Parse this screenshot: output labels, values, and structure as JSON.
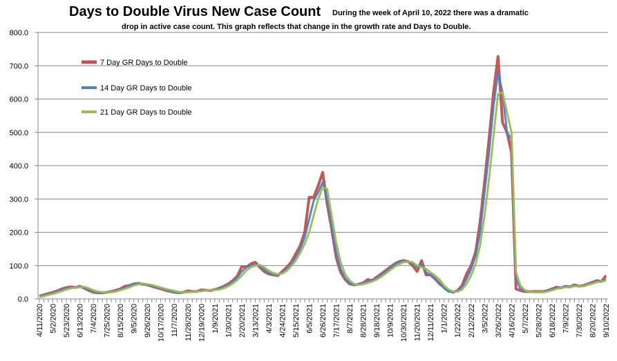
{
  "chart_data": {
    "type": "line",
    "title": "Days to Double Virus New Case Count",
    "subtitle_line1": "During the week of April 10, 2022 there was a dramatic",
    "subtitle_line2": "drop in active case count.  This graph reflects that change in the growth rate and Days to Double.",
    "xlabel": "",
    "ylabel": "",
    "ylim": [
      0,
      800
    ],
    "yticks": [
      "0.0",
      "100.0",
      "200.0",
      "300.0",
      "400.0",
      "500.0",
      "600.0",
      "700.0",
      "800.0"
    ],
    "grid": "horizontal",
    "legend_position": "upper-left",
    "x_interval": "weekly",
    "xtick_labels": [
      "4/11/2020",
      "5/2/2020",
      "5/23/2020",
      "6/13/2020",
      "7/4/2020",
      "7/25/2020",
      "8/15/2020",
      "9/5/2020",
      "9/26/2020",
      "10/17/2020",
      "11/7/2020",
      "11/28/2020",
      "12/19/2020",
      "1/9/2021",
      "1/30/2021",
      "2/20/2021",
      "3/13/2021",
      "4/3/2021",
      "4/24/2021",
      "5/15/2021",
      "6/5/2021",
      "6/26/2021",
      "7/17/2021",
      "8/7/2021",
      "8/28/2021",
      "9/18/2021",
      "10/9/2021",
      "10/30/2021",
      "11/20/2021",
      "12/11/2021",
      "1/1/2022",
      "1/22/2022",
      "2/12/2022",
      "3/5/2022",
      "3/26/2022",
      "4/16/2022",
      "5/7/2022",
      "5/28/2022",
      "6/18/2022",
      "7/9/2022",
      "7/30/2022",
      "8/20/2022",
      "9/10/2022"
    ],
    "series": [
      {
        "name": "7 Day GR Days to Double",
        "color": "#C0504D",
        "values": [
          8,
          12,
          16,
          20,
          24,
          30,
          34,
          36,
          34,
          38,
          32,
          25,
          20,
          18,
          18,
          20,
          22,
          26,
          30,
          38,
          40,
          45,
          46,
          44,
          42,
          38,
          34,
          30,
          26,
          23,
          20,
          18,
          20,
          24,
          22,
          22,
          27,
          26,
          25,
          28,
          32,
          38,
          45,
          55,
          68,
          97,
          95,
          105,
          110,
          95,
          82,
          75,
          72,
          70,
          82,
          95,
          110,
          135,
          160,
          200,
          305,
          305,
          340,
          380,
          285,
          210,
          125,
          80,
          58,
          45,
          42,
          44,
          48,
          58,
          55,
          65,
          75,
          85,
          95,
          105,
          112,
          115,
          112,
          100,
          82,
          115,
          72,
          72,
          60,
          45,
          35,
          25,
          20,
          25,
          40,
          75,
          100,
          140,
          230,
          350,
          480,
          620,
          728,
          530,
          500,
          440,
          30,
          25,
          22,
          22,
          22,
          22,
          22,
          25,
          30,
          35,
          33,
          38,
          36,
          42,
          38,
          40,
          45,
          50,
          55,
          52,
          70
        ]
      },
      {
        "name": "14 Day GR Days to Double",
        "color": "#4F81BD",
        "values": [
          6,
          10,
          14,
          18,
          22,
          27,
          32,
          34,
          35,
          36,
          34,
          28,
          22,
          20,
          19,
          20,
          21,
          24,
          28,
          34,
          40,
          44,
          48,
          45,
          42,
          40,
          36,
          32,
          28,
          24,
          21,
          19,
          19,
          21,
          22,
          23,
          25,
          26,
          26,
          27,
          30,
          36,
          42,
          52,
          64,
          82,
          95,
          100,
          104,
          100,
          88,
          78,
          74,
          72,
          78,
          90,
          105,
          125,
          150,
          185,
          240,
          295,
          320,
          350,
          300,
          220,
          140,
          90,
          62,
          48,
          43,
          43,
          46,
          52,
          56,
          62,
          72,
          82,
          92,
          102,
          110,
          114,
          112,
          105,
          95,
          105,
          80,
          72,
          62,
          48,
          32,
          22,
          20,
          24,
          35,
          60,
          90,
          130,
          200,
          320,
          440,
          580,
          680,
          620,
          500,
          480,
          60,
          30,
          24,
          22,
          21,
          21,
          22,
          24,
          28,
          32,
          34,
          36,
          36,
          40,
          38,
          40,
          44,
          48,
          52,
          52,
          60
        ]
      },
      {
        "name": "21 Day GR Days to Double",
        "color": "#9BBB59",
        "values": [
          5,
          8,
          12,
          15,
          19,
          23,
          28,
          32,
          34,
          35,
          36,
          32,
          26,
          22,
          20,
          20,
          20,
          22,
          26,
          30,
          35,
          40,
          44,
          46,
          44,
          42,
          38,
          34,
          30,
          27,
          24,
          21,
          20,
          20,
          21,
          22,
          23,
          25,
          26,
          27,
          28,
          32,
          38,
          46,
          56,
          70,
          85,
          95,
          100,
          102,
          95,
          85,
          78,
          74,
          76,
          84,
          98,
          115,
          138,
          165,
          200,
          250,
          300,
          335,
          330,
          250,
          170,
          110,
          75,
          55,
          45,
          42,
          44,
          48,
          52,
          58,
          66,
          76,
          86,
          96,
          104,
          110,
          112,
          110,
          100,
          95,
          90,
          80,
          70,
          58,
          40,
          28,
          22,
          22,
          28,
          45,
          70,
          105,
          160,
          250,
          360,
          490,
          615,
          620,
          560,
          500,
          80,
          40,
          26,
          22,
          20,
          20,
          20,
          22,
          26,
          30,
          33,
          35,
          35,
          38,
          38,
          38,
          42,
          46,
          50,
          52,
          55
        ]
      }
    ]
  }
}
